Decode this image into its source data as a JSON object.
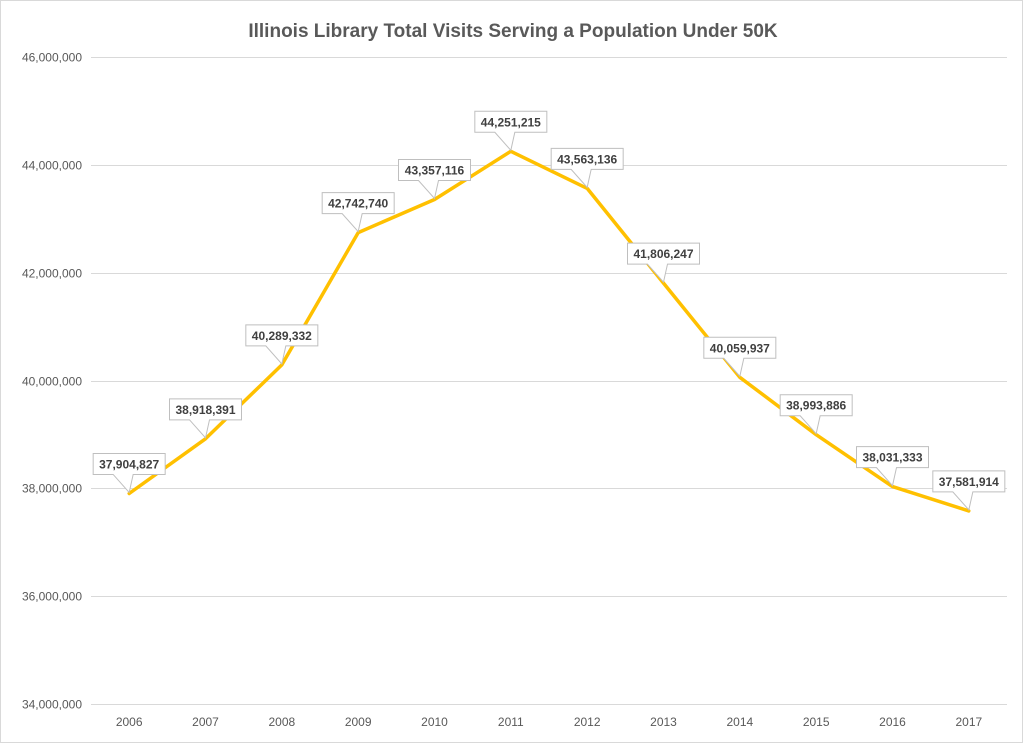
{
  "chart_data": {
    "type": "line",
    "title": "Illinois Library Total Visits Serving a Population Under 50K",
    "xlabel": "",
    "ylabel": "",
    "categories": [
      "2006",
      "2007",
      "2008",
      "2009",
      "2010",
      "2011",
      "2012",
      "2013",
      "2014",
      "2015",
      "2016",
      "2017"
    ],
    "series": [
      {
        "name": "Total Visits",
        "color": "#FFC000",
        "values": [
          37904827,
          38918391,
          40289332,
          42742740,
          43357116,
          44251215,
          43563136,
          41806247,
          40059937,
          38993886,
          38031333,
          37581914
        ],
        "data_labels": [
          "37,904,827",
          "38,918,391",
          "40,289,332",
          "42,742,740",
          "43,357,116",
          "44,251,215",
          "43,563,136",
          "41,806,247",
          "40,059,937",
          "38,993,886",
          "38,031,333",
          "37,581,914"
        ]
      }
    ],
    "ylim": [
      34000000,
      46000000
    ],
    "yticks": [
      34000000,
      36000000,
      38000000,
      40000000,
      42000000,
      44000000,
      46000000
    ],
    "ytick_labels": [
      "34,000,000",
      "36,000,000",
      "38,000,000",
      "40,000,000",
      "42,000,000",
      "44,000,000",
      "46,000,000"
    ],
    "grid": true,
    "legend": "none"
  }
}
